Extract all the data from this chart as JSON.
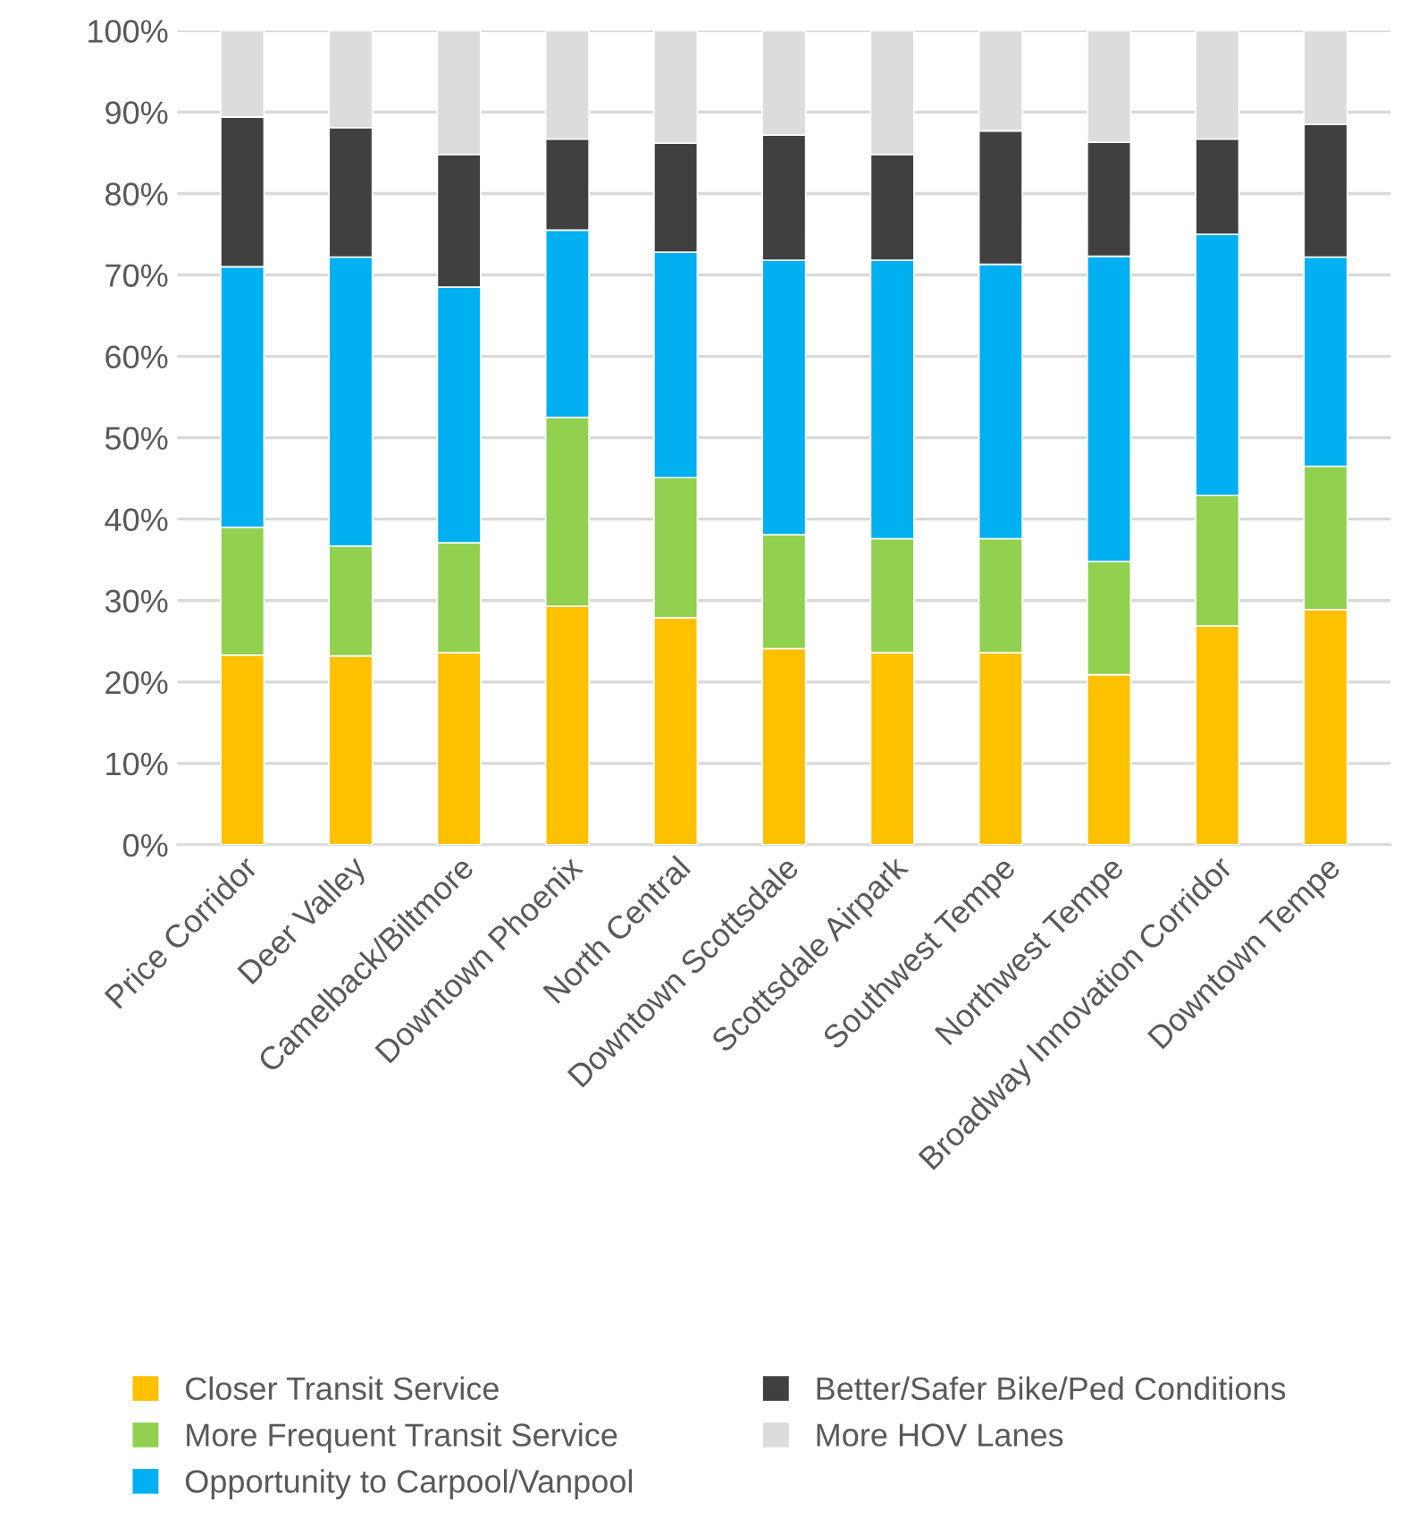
{
  "chart_data": {
    "type": "bar",
    "stacked": true,
    "categories": [
      "Price Corridor",
      "Deer Valley",
      "Camelback/Biltmore",
      "Downtown Phoenix",
      "North Central",
      "Downtown Scottsdale",
      "Scottsdale Airpark",
      "Southwest Tempe",
      "Northwest Tempe",
      "Broadway Innovation Corridor",
      "Downtown Tempe"
    ],
    "series": [
      {
        "name": "Closer Transit Service",
        "color": "#ffc000",
        "values": [
          23.3,
          23.2,
          23.6,
          29.3,
          27.9,
          24.1,
          23.6,
          23.6,
          20.9,
          26.9,
          28.9
        ]
      },
      {
        "name": "More Frequent Transit Service",
        "color": "#92d050",
        "values": [
          15.7,
          13.5,
          13.5,
          23.2,
          17.2,
          14.0,
          14.0,
          14.0,
          13.9,
          16.0,
          17.6
        ]
      },
      {
        "name": "Opportunity to Carpool/Vanpool",
        "color": "#00b0f0",
        "values": [
          32.0,
          35.5,
          31.4,
          23.0,
          27.7,
          33.7,
          34.2,
          33.7,
          37.5,
          32.1,
          25.7
        ]
      },
      {
        "name": "Better/Safer Bike/Ped Conditions",
        "color": "#404040",
        "values": [
          18.4,
          15.9,
          16.3,
          11.2,
          13.4,
          15.4,
          13.0,
          16.4,
          14.0,
          11.7,
          16.3
        ]
      },
      {
        "name": "More HOV Lanes",
        "color": "#dcdcdc",
        "values": [
          10.6,
          11.9,
          15.2,
          13.3,
          13.8,
          12.8,
          15.2,
          12.3,
          13.7,
          13.3,
          11.5
        ]
      }
    ],
    "ylim": [
      0,
      100
    ],
    "yticks": [
      {
        "value": 0,
        "label": "0%"
      },
      {
        "value": 10,
        "label": "10%"
      },
      {
        "value": 20,
        "label": "20%"
      },
      {
        "value": 30,
        "label": "30%"
      },
      {
        "value": 40,
        "label": "40%"
      },
      {
        "value": 50,
        "label": "50%"
      },
      {
        "value": 60,
        "label": "60%"
      },
      {
        "value": 70,
        "label": "70%"
      },
      {
        "value": 80,
        "label": "80%"
      },
      {
        "value": 90,
        "label": "90%"
      },
      {
        "value": 100,
        "label": "100%"
      }
    ],
    "grid": "y",
    "legend": "bottom"
  }
}
